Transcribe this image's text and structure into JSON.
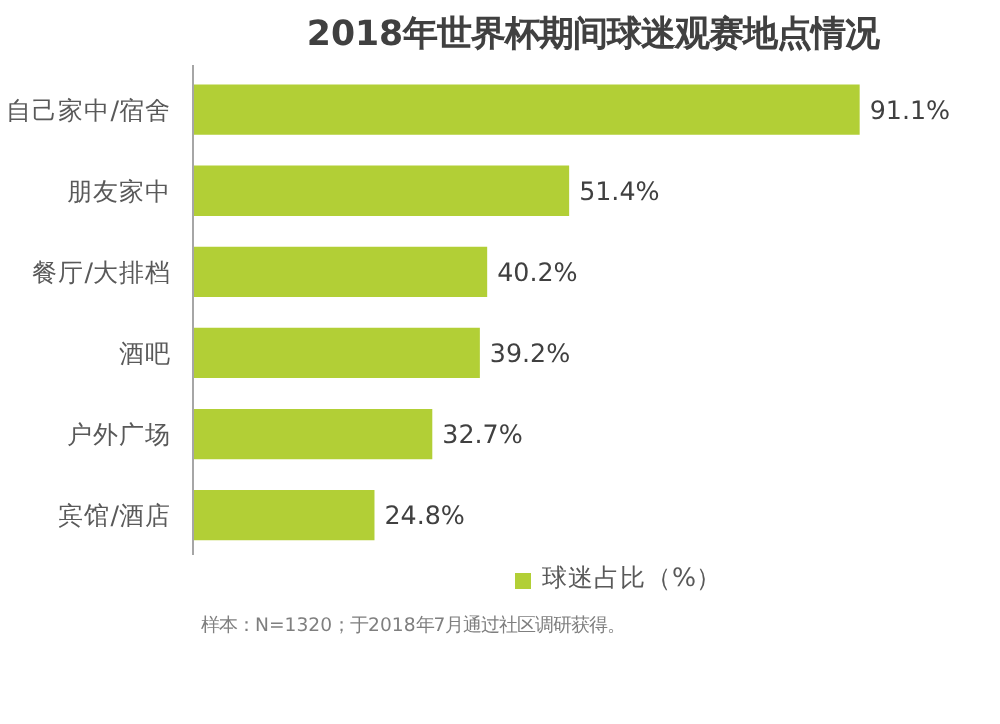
{
  "chart_data": {
    "type": "bar",
    "orientation": "horizontal",
    "title": "2018年世界杯期间球迷观赛地点情况",
    "categories": [
      "自己家中/宿舍",
      "朋友家中",
      "餐厅/大排档",
      "酒吧",
      "户外广场",
      "宾馆/酒店"
    ],
    "series": [
      {
        "name": "球迷占比（%）",
        "color": "#b2cf36",
        "values": [
          91.1,
          51.4,
          40.2,
          39.2,
          32.7,
          24.8
        ],
        "value_labels": [
          "91.1%",
          "51.4%",
          "40.2%",
          "39.2%",
          "32.7%",
          "24.8%"
        ]
      }
    ],
    "legend": "bottom",
    "annotations": [
      "样本：N=1320；于2018年7月通过社区调研获得。"
    ]
  }
}
